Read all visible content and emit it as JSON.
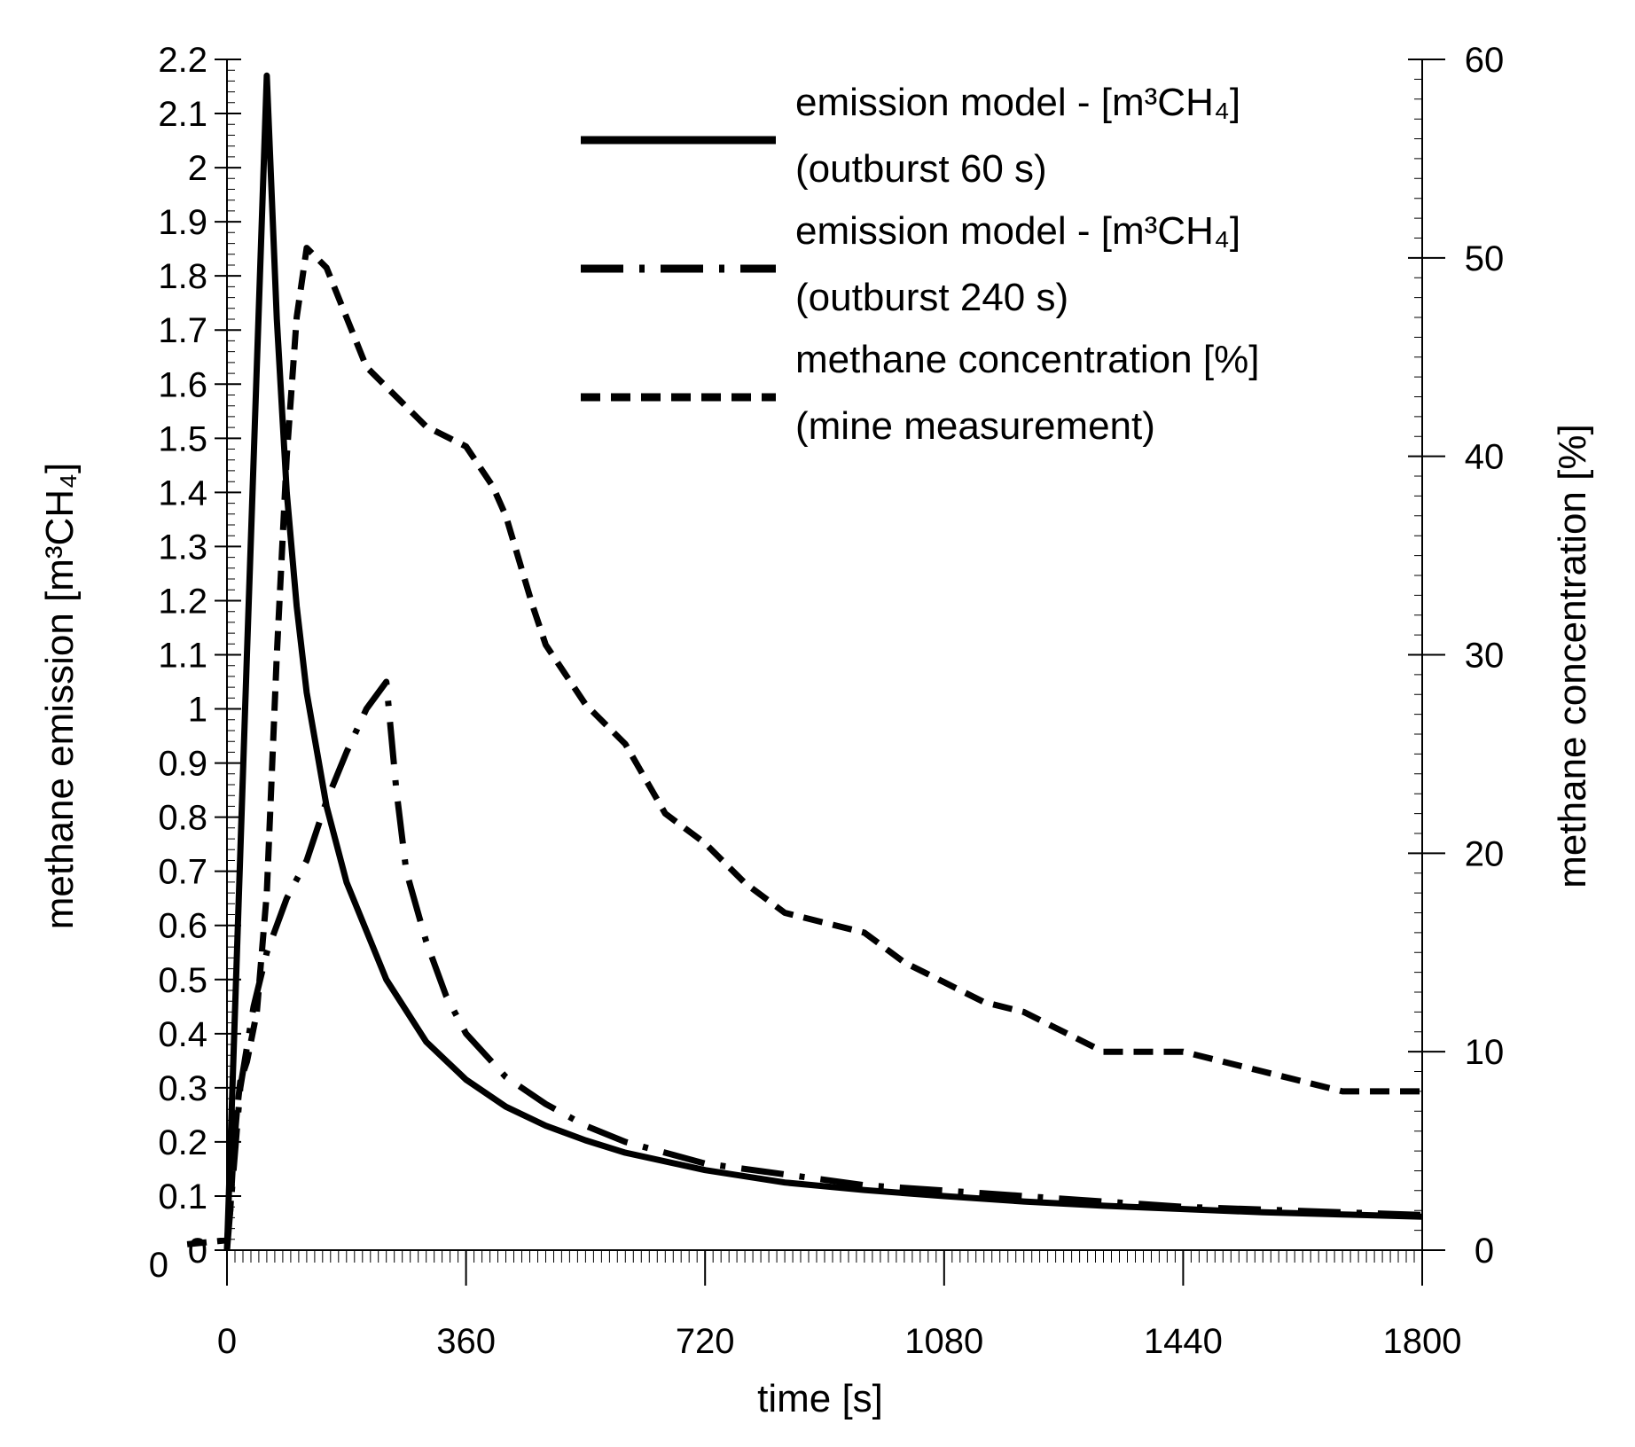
{
  "chart_data": {
    "type": "line",
    "xlabel": "time [s]",
    "ylabel_left": "methane emission [m³CH₄]",
    "ylabel_right": "methane concentration [%]",
    "xlim": [
      -60,
      1800
    ],
    "xticks": [
      0,
      360,
      720,
      1080,
      1440,
      1800
    ],
    "xtick_labels": [
      "0",
      "360",
      "720",
      "1080",
      "1440",
      "1800"
    ],
    "ylim_left": [
      0,
      2.2
    ],
    "yticks_left": [
      0,
      0.1,
      0.2,
      0.3,
      0.4,
      0.5,
      0.6,
      0.7,
      0.8,
      0.9,
      1,
      1.1,
      1.2,
      1.3,
      1.4,
      1.5,
      1.6,
      1.7,
      1.8,
      1.9,
      2,
      2.1,
      2.2
    ],
    "ytick_labels_left": [
      "0",
      "0.1",
      "0.2",
      "0.3",
      "0.4",
      "0.5",
      "0.6",
      "0.7",
      "0.8",
      "0.9",
      "1",
      "1.1",
      "1.2",
      "1.3",
      "1.4",
      "1.5",
      "1.6",
      "1.7",
      "1.8",
      "1.9",
      "2",
      "2.1",
      "2.2"
    ],
    "ylim_right": [
      0,
      60
    ],
    "yticks_right": [
      0,
      10,
      20,
      30,
      40,
      50,
      60
    ],
    "ytick_labels_right": [
      "0",
      "10",
      "20",
      "30",
      "40",
      "50",
      "60"
    ],
    "extra_left_label": "0",
    "grid": false,
    "legend_position": "top-right",
    "series": [
      {
        "name": "emission model - [m³CH₄] (outburst 60 s)",
        "legend_line1": "emission model - [m³CH₄]",
        "legend_line2": "(outburst 60 s)",
        "axis": "left",
        "style": "solid",
        "x": [
          0,
          30,
          60,
          75,
          90,
          105,
          120,
          150,
          180,
          240,
          300,
          360,
          420,
          480,
          540,
          600,
          720,
          840,
          960,
          1080,
          1200,
          1320,
          1440,
          1560,
          1680,
          1800
        ],
        "y": [
          0,
          1.1,
          2.17,
          1.72,
          1.4,
          1.19,
          1.03,
          0.82,
          0.68,
          0.5,
          0.385,
          0.315,
          0.265,
          0.23,
          0.203,
          0.18,
          0.148,
          0.125,
          0.111,
          0.1,
          0.09,
          0.082,
          0.076,
          0.07,
          0.066,
          0.062
        ]
      },
      {
        "name": "emission model - [m³CH₄] (outburst 240 s)",
        "legend_line1": "emission model - [m³CH₄]",
        "legend_line2": "(outburst 240 s)",
        "axis": "left",
        "style": "dash-dot",
        "x": [
          0,
          20,
          40,
          60,
          90,
          120,
          150,
          180,
          210,
          240,
          255,
          270,
          300,
          330,
          360,
          420,
          480,
          540,
          600,
          720,
          840,
          960,
          1080,
          1200,
          1320,
          1440,
          1560,
          1680,
          1800
        ],
        "y": [
          0,
          0.3,
          0.45,
          0.55,
          0.65,
          0.72,
          0.83,
          0.92,
          1.0,
          1.05,
          0.85,
          0.7,
          0.57,
          0.47,
          0.4,
          0.32,
          0.27,
          0.23,
          0.2,
          0.16,
          0.14,
          0.12,
          0.11,
          0.1,
          0.09,
          0.08,
          0.075,
          0.07,
          0.065
        ]
      },
      {
        "name": "methane concentration [%] (mine measurement)",
        "legend_line1": "methane concentration [%]",
        "legend_line2": "(mine measurement)",
        "axis": "right",
        "style": "dashed",
        "x": [
          -60,
          0,
          5,
          10,
          15,
          20,
          30,
          45,
          60,
          75,
          90,
          105,
          120,
          150,
          180,
          210,
          240,
          300,
          360,
          400,
          420,
          460,
          480,
          540,
          600,
          660,
          720,
          780,
          840,
          900,
          960,
          1020,
          1080,
          1140,
          1200,
          1260,
          1320,
          1380,
          1440,
          1500,
          1560,
          1620,
          1680,
          1740,
          1800
        ],
        "y": [
          0.3,
          0.5,
          2.0,
          5.0,
          7.0,
          8.5,
          9.5,
          12.0,
          18.0,
          30.0,
          40.0,
          47.0,
          50.5,
          49.5,
          47.0,
          44.5,
          43.5,
          41.5,
          40.5,
          38.5,
          37.0,
          32.5,
          30.5,
          27.5,
          25.5,
          22.0,
          20.5,
          18.5,
          17.0,
          16.5,
          16.0,
          14.5,
          13.5,
          12.5,
          12.0,
          11.0,
          10.0,
          10.0,
          10.0,
          9.5,
          9.0,
          8.5,
          8.0,
          8.0,
          8.0
        ]
      }
    ]
  }
}
